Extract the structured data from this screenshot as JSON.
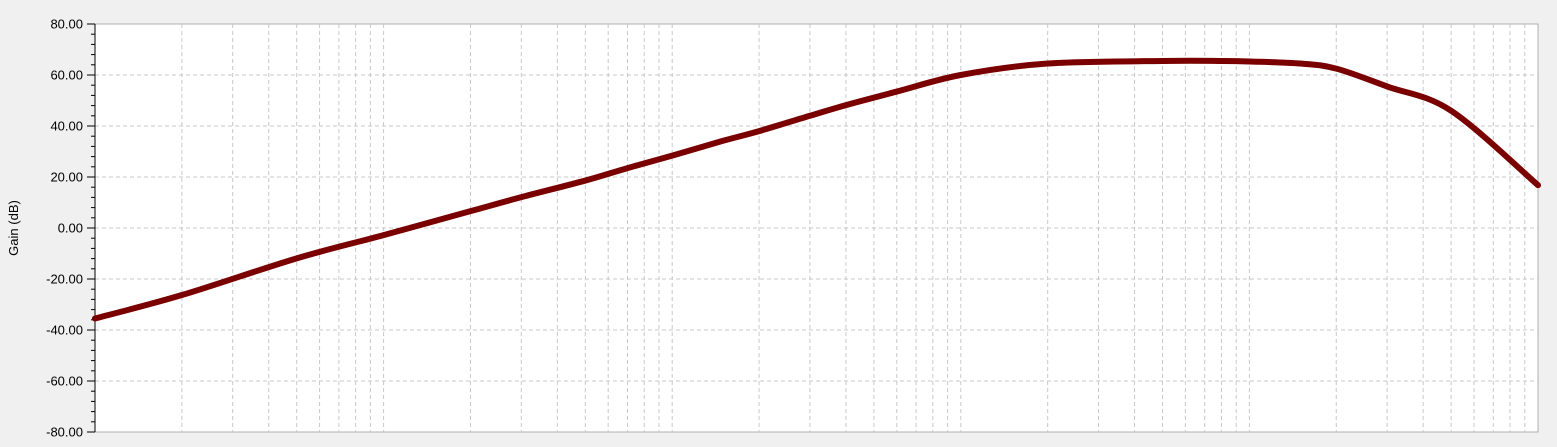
{
  "chart_data": {
    "type": "line",
    "title": "",
    "xlabel": "",
    "ylabel": "Gain (dB)",
    "x_scale": "log",
    "xlim": [
      1,
      100000
    ],
    "ylim": [
      -80,
      80
    ],
    "y_ticks": [
      80,
      60,
      40,
      20,
      0,
      -20,
      -40,
      -60,
      -80
    ],
    "y_tick_labels": [
      "80.00",
      "60.00",
      "40.00",
      "20.00",
      "0.00",
      "-20.00",
      "-40.00",
      "-60.00",
      "-80.00"
    ],
    "grid": true,
    "series": [
      {
        "name": "",
        "color": "#7a0000",
        "x": [
          1,
          2,
          5,
          10,
          20,
          30,
          50,
          70,
          100,
          150,
          200,
          300,
          400,
          600,
          1000,
          2000,
          5000,
          8000,
          10000,
          15000,
          20000,
          30000,
          50000,
          100000
        ],
        "y": [
          -35.5,
          -26.3,
          -11.9,
          -2.8,
          6.6,
          12.1,
          18.6,
          23.5,
          28.4,
          34.2,
          38.0,
          44.0,
          48.2,
          53.5,
          60.0,
          64.5,
          65.5,
          65.5,
          65.3,
          64.5,
          62.5,
          55.5,
          46.0,
          16.8
        ]
      }
    ]
  }
}
